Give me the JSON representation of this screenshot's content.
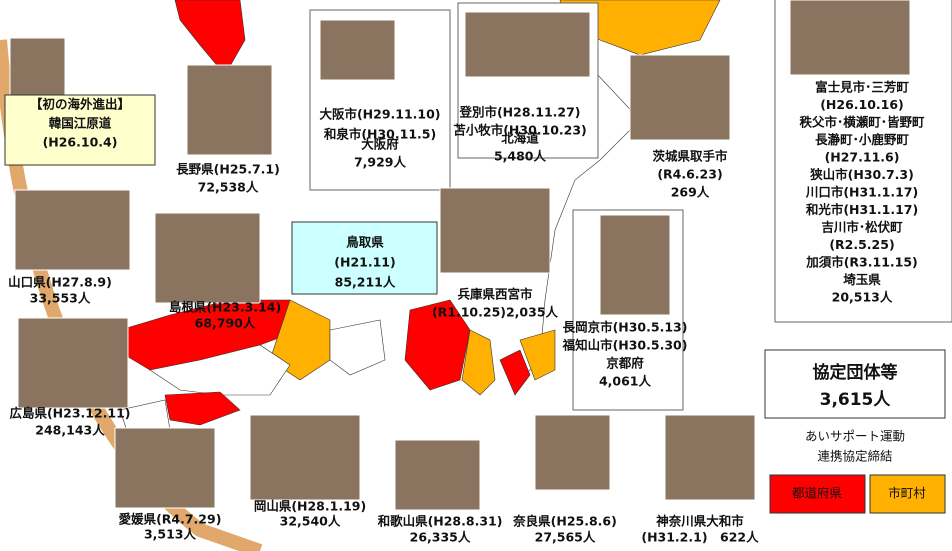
{
  "entries": [
    {
      "lines": [
        "【初の海外進出】",
        "韓国江原道",
        "(H26.10.4)"
      ]
    },
    {
      "lines": [
        "長野県(H25.7.1)",
        "72,538人"
      ]
    },
    {
      "lines": [
        "大阪市(H29.11.10)",
        "和泉市(H30.11.5)",
        "大阪府",
        "7,929人"
      ]
    },
    {
      "lines": [
        "登別市(H28.11.27)",
        "苫小牧市(H30.10.23)",
        "北海道",
        "5,480人"
      ]
    },
    {
      "lines": [
        "茨城県取手市",
        "(R4.6.23)",
        "269人"
      ]
    },
    {
      "lines": [
        "富士見市･三芳町",
        "(H26.10.16)",
        "秩父市･横瀬町･皆野町",
        "長瀞町･小鹿野町",
        "(H27.11.6)",
        "狭山市(H30.7.3)",
        "川口市(H31.1.17)",
        "和光市(H31.1.17)",
        "吉川市･松伏町",
        "(R2.5.25)",
        "加須市(R3.11.15)",
        "埼玉県",
        "20,513人"
      ]
    },
    {
      "lines": [
        "山口県(H27.8.9)",
        "33,553人"
      ]
    },
    {
      "lines": [
        "島根県(H23.3.14)",
        "68,790人"
      ]
    },
    {
      "lines": [
        "鳥取県",
        "(H21.11)",
        "85,211人"
      ]
    },
    {
      "lines": [
        "兵庫県西宮市",
        "(R1.10.25)2,035人"
      ]
    },
    {
      "lines": [
        "長岡京市(H30.5.13)",
        "福知山市(H30.5.30)",
        "京都府",
        "4,061人"
      ]
    },
    {
      "lines": [
        "広島県(H23.12.11)",
        "248,143人"
      ]
    },
    {
      "lines": [
        "愛媛県(R4.7.29)",
        "3,513人"
      ]
    },
    {
      "lines": [
        "岡山県(H28.1.19)",
        "32,540人"
      ]
    },
    {
      "lines": [
        "和歌山県(H28.8.31)",
        "26,335人"
      ]
    },
    {
      "lines": [
        "奈良県(H25.8.6)",
        "27,565人"
      ]
    },
    {
      "lines": [
        "神奈川県大和市",
        "(H31.2.1)　622人"
      ]
    }
  ],
  "total": {
    "label": "協定団体等",
    "value": "3,615人"
  },
  "caption": [
    "あいサポート運動",
    "連携協定締結"
  ],
  "legend": [
    "都道府県",
    "市町村"
  ]
}
